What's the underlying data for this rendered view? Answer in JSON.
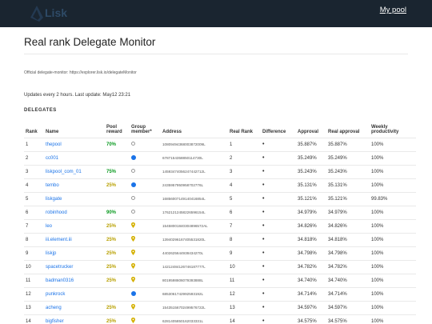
{
  "header": {
    "logo_text": "Lisk",
    "my_pool": "My pool"
  },
  "page": {
    "title": "Real rank Delegate Monitor",
    "official": "Official delegate-monitor: https://explorer.lisk.io/delegateMonitor",
    "updates": "Updates every 2 hours. Last update: May12 23:21",
    "section": "DELEGATES"
  },
  "columns": [
    "Rank",
    "Name",
    "Pool reward",
    "Group member*",
    "Address",
    "Real Rank",
    "Difference",
    "Approval",
    "Real approval",
    "Weekly productivity"
  ],
  "rows": [
    {
      "rank": "1",
      "name": "thepool",
      "reward": "70%",
      "reward_color": "green",
      "member": "empty",
      "address": "10809494368003872009L",
      "real_rank": "1",
      "approval": "35.887%",
      "real_approval": "35.887%",
      "productivity": "100%"
    },
    {
      "rank": "2",
      "name": "cc001",
      "reward": "",
      "reward_color": "",
      "member": "blue",
      "address": "6787154358850114730L",
      "real_rank": "2",
      "approval": "35.249%",
      "real_approval": "35.249%",
      "productivity": "100%"
    },
    {
      "rank": "3",
      "name": "liskpool_com_01",
      "reward": "75%",
      "reward_color": "green",
      "member": "empty",
      "address": "14593474056247442712L",
      "real_rank": "3",
      "approval": "35.243%",
      "real_approval": "35.243%",
      "productivity": "100%"
    },
    {
      "rank": "4",
      "name": "tembo",
      "reward": "25%",
      "reward_color": "yellow",
      "member": "blue",
      "address": "2435957950958702776L",
      "real_rank": "4",
      "approval": "35.131%",
      "real_approval": "35.131%",
      "productivity": "100%"
    },
    {
      "rank": "5",
      "name": "liskgate",
      "reward": "",
      "reward_color": "",
      "member": "empty",
      "address": "16856007149140416854L",
      "real_rank": "5",
      "approval": "35.121%",
      "real_approval": "35.121%",
      "productivity": "99.83%"
    },
    {
      "rank": "6",
      "name": "robinhood",
      "reward": "90%",
      "reward_color": "green",
      "member": "empty",
      "address": "17621212458226596154L",
      "real_rank": "6",
      "approval": "34.979%",
      "real_approval": "34.979%",
      "productivity": "100%"
    },
    {
      "rank": "7",
      "name": "leo",
      "reward": "25%",
      "reward_color": "yellow",
      "member": "pin",
      "address": "15458001840304896572AL",
      "real_rank": "7",
      "approval": "34.826%",
      "real_approval": "34.826%",
      "productivity": "100%"
    },
    {
      "rank": "8",
      "name": "iii.element.iii",
      "reward": "25%",
      "reward_color": "yellow",
      "member": "pin",
      "address": "13940296167405531820L",
      "real_rank": "8",
      "approval": "34.818%",
      "real_approval": "34.818%",
      "productivity": "100%"
    },
    {
      "rank": "9",
      "name": "liskjp",
      "reward": "25%",
      "reward_color": "yellow",
      "member": "pin",
      "address": "4402625644938434270L",
      "real_rank": "9",
      "approval": "34.798%",
      "real_approval": "34.798%",
      "productivity": "100%"
    },
    {
      "rank": "10",
      "name": "spacetrucker",
      "reward": "25%",
      "reward_color": "yellow",
      "member": "pin",
      "address": "14212484126746187777L",
      "real_rank": "10",
      "approval": "34.782%",
      "real_approval": "34.782%",
      "productivity": "100%"
    },
    {
      "rank": "11",
      "name": "badman0316",
      "reward": "25%",
      "reward_color": "yellow",
      "member": "pin",
      "address": "8019598606079393888L",
      "real_rank": "11",
      "approval": "34.740%",
      "real_approval": "34.740%",
      "productivity": "100%"
    },
    {
      "rank": "12",
      "name": "punkrock",
      "reward": "",
      "reward_color": "",
      "member": "blue",
      "address": "6853061742992593192L",
      "real_rank": "12",
      "approval": "34.714%",
      "real_approval": "34.714%",
      "productivity": "100%"
    },
    {
      "rank": "13",
      "name": "acheng",
      "reward": "25%",
      "reward_color": "yellow",
      "member": "pin",
      "address": "15435156702499576722L",
      "real_rank": "13",
      "approval": "34.597%",
      "real_approval": "34.597%",
      "productivity": "100%"
    },
    {
      "rank": "14",
      "name": "bigfisher",
      "reward": "25%",
      "reward_color": "yellow",
      "member": "pin",
      "address": "6281405850162033331L",
      "real_rank": "14",
      "approval": "34.575%",
      "real_approval": "34.575%",
      "productivity": "100%"
    }
  ],
  "colors": {
    "topbar": "#1a2530",
    "link": "#1a73e8",
    "reward_green": "#0a9a20",
    "reward_yellow": "#b8a000",
    "member_blue": "#1a73e8"
  }
}
